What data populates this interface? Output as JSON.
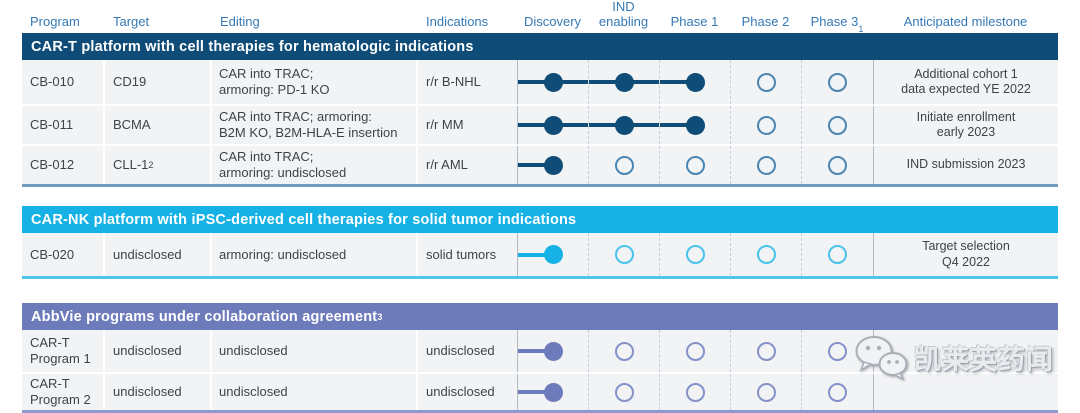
{
  "colors": {
    "navy-bar": "#0F4C78",
    "navy-ring": "#4B86B2",
    "navy-border": "#6E9CC0",
    "cyan-bar": "#17B2E5",
    "cyan-ring": "#49C2EC",
    "cyan-border": "#4FC4EC",
    "purple-bar": "#6E7BBB",
    "purple-ring": "#8591C9",
    "purple-border": "#8D99CE",
    "header-text": "#3579B4",
    "row-bg": "#F2F3F5",
    "body-text": "#3F4347"
  },
  "columns": [
    {
      "label": "Program"
    },
    {
      "label": "Target"
    },
    {
      "label": "Editing"
    },
    {
      "label": "Indications"
    },
    {
      "label": "Discovery"
    },
    {
      "label": "IND\nenabling"
    },
    {
      "label": "Phase 1"
    },
    {
      "label": "Phase 2"
    },
    {
      "label": "Phase 3",
      "sup": "1"
    },
    {
      "label": "Anticipated milestone"
    }
  ],
  "sections": [
    {
      "title": "CAR-T platform with cell therapies for hematologic indications",
      "rows": [
        {
          "program": "CB-010",
          "target": "CD19",
          "editing": "CAR into TRAC;\narmoring: PD-1 KO",
          "indications": "r/r B-NHL",
          "phases": [
            "filled",
            "filled",
            "filled",
            "empty",
            "empty"
          ],
          "milestone": "Additional cohort 1\ndata expected YE 2022"
        },
        {
          "program": "CB-011",
          "target": "BCMA",
          "editing": "CAR into TRAC; armoring:\nB2M KO, B2M-HLA-E insertion",
          "indications": "r/r MM",
          "phases": [
            "filled",
            "filled",
            "filled",
            "empty",
            "empty"
          ],
          "milestone": "Initiate enrollment\nearly 2023"
        },
        {
          "program": "CB-012",
          "target": "CLL-1",
          "target_sup": "2",
          "editing": "CAR into TRAC;\narmoring: undisclosed",
          "indications": "r/r AML",
          "phases": [
            "filled",
            "empty",
            "empty",
            "empty",
            "empty"
          ],
          "milestone": "IND submission 2023"
        }
      ]
    },
    {
      "title": "CAR-NK platform with iPSC-derived cell therapies for solid tumor indications",
      "rows": [
        {
          "program": "CB-020",
          "target": "undisclosed",
          "editing": "armoring: undisclosed",
          "indications": "solid tumors",
          "phases": [
            "filled",
            "empty",
            "empty",
            "empty",
            "empty"
          ],
          "milestone": "Target selection\nQ4 2022"
        }
      ]
    },
    {
      "title": "AbbVie programs under collaboration agreement",
      "sup": "3",
      "rows": [
        {
          "program": "CAR-T\nProgram 1",
          "target": "undisclosed",
          "editing": "undisclosed",
          "indications": "undisclosed",
          "phases": [
            "filled",
            "empty",
            "empty",
            "empty",
            "empty"
          ],
          "milestone": ""
        },
        {
          "program": "CAR-T\nProgram 2",
          "target": "undisclosed",
          "editing": "undisclosed",
          "indications": "undisclosed",
          "phases": [
            "filled",
            "empty",
            "empty",
            "empty",
            "empty"
          ],
          "milestone": ""
        }
      ]
    }
  ],
  "watermark": {
    "icon": "wechat-logo",
    "text": "凯莱英药闻"
  }
}
